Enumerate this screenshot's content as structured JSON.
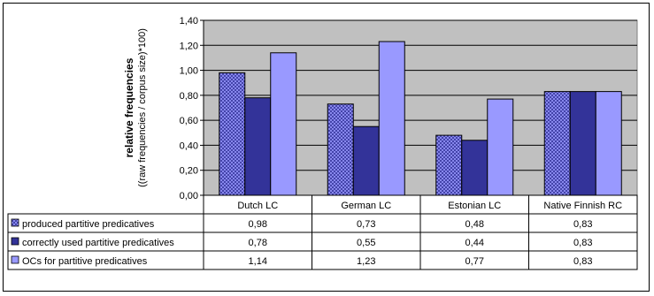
{
  "chart_data": {
    "type": "bar",
    "title": "",
    "ylabel": "relative frequencies",
    "ylabel_sub": "((raw frequencies / corpus size)*100)",
    "xlabel": "",
    "ylim": [
      0,
      1.4
    ],
    "ytick_step": 0.2,
    "yticks": [
      "0,00",
      "0,20",
      "0,40",
      "0,60",
      "0,80",
      "1,00",
      "1,20",
      "1,40"
    ],
    "grid": true,
    "legend_placement": "data-table-left",
    "categories": [
      "Dutch LC",
      "German LC",
      "Estonian LC",
      "Native Finnish RC"
    ],
    "series": [
      {
        "name": "produced partitive predicatives",
        "values": [
          0.98,
          0.73,
          0.48,
          0.83
        ],
        "labels": [
          "0,98",
          "0,73",
          "0,48",
          "0,83"
        ],
        "color": "#9999ff",
        "pattern": "crosshatch"
      },
      {
        "name": "correctly used partitive predicatives",
        "values": [
          0.78,
          0.55,
          0.44,
          0.83
        ],
        "labels": [
          "0,78",
          "0,55",
          "0,44",
          "0,83"
        ],
        "color": "#333399",
        "pattern": "solid"
      },
      {
        "name": "OCs for partitive predicatives",
        "values": [
          1.14,
          1.23,
          0.77,
          0.83
        ],
        "labels": [
          "1,14",
          "1,23",
          "0,77",
          "0,83"
        ],
        "color": "#9999ff",
        "pattern": "solid"
      }
    ],
    "colors": {
      "plot_background": "#c0c0c0",
      "grid": "#000000"
    }
  }
}
